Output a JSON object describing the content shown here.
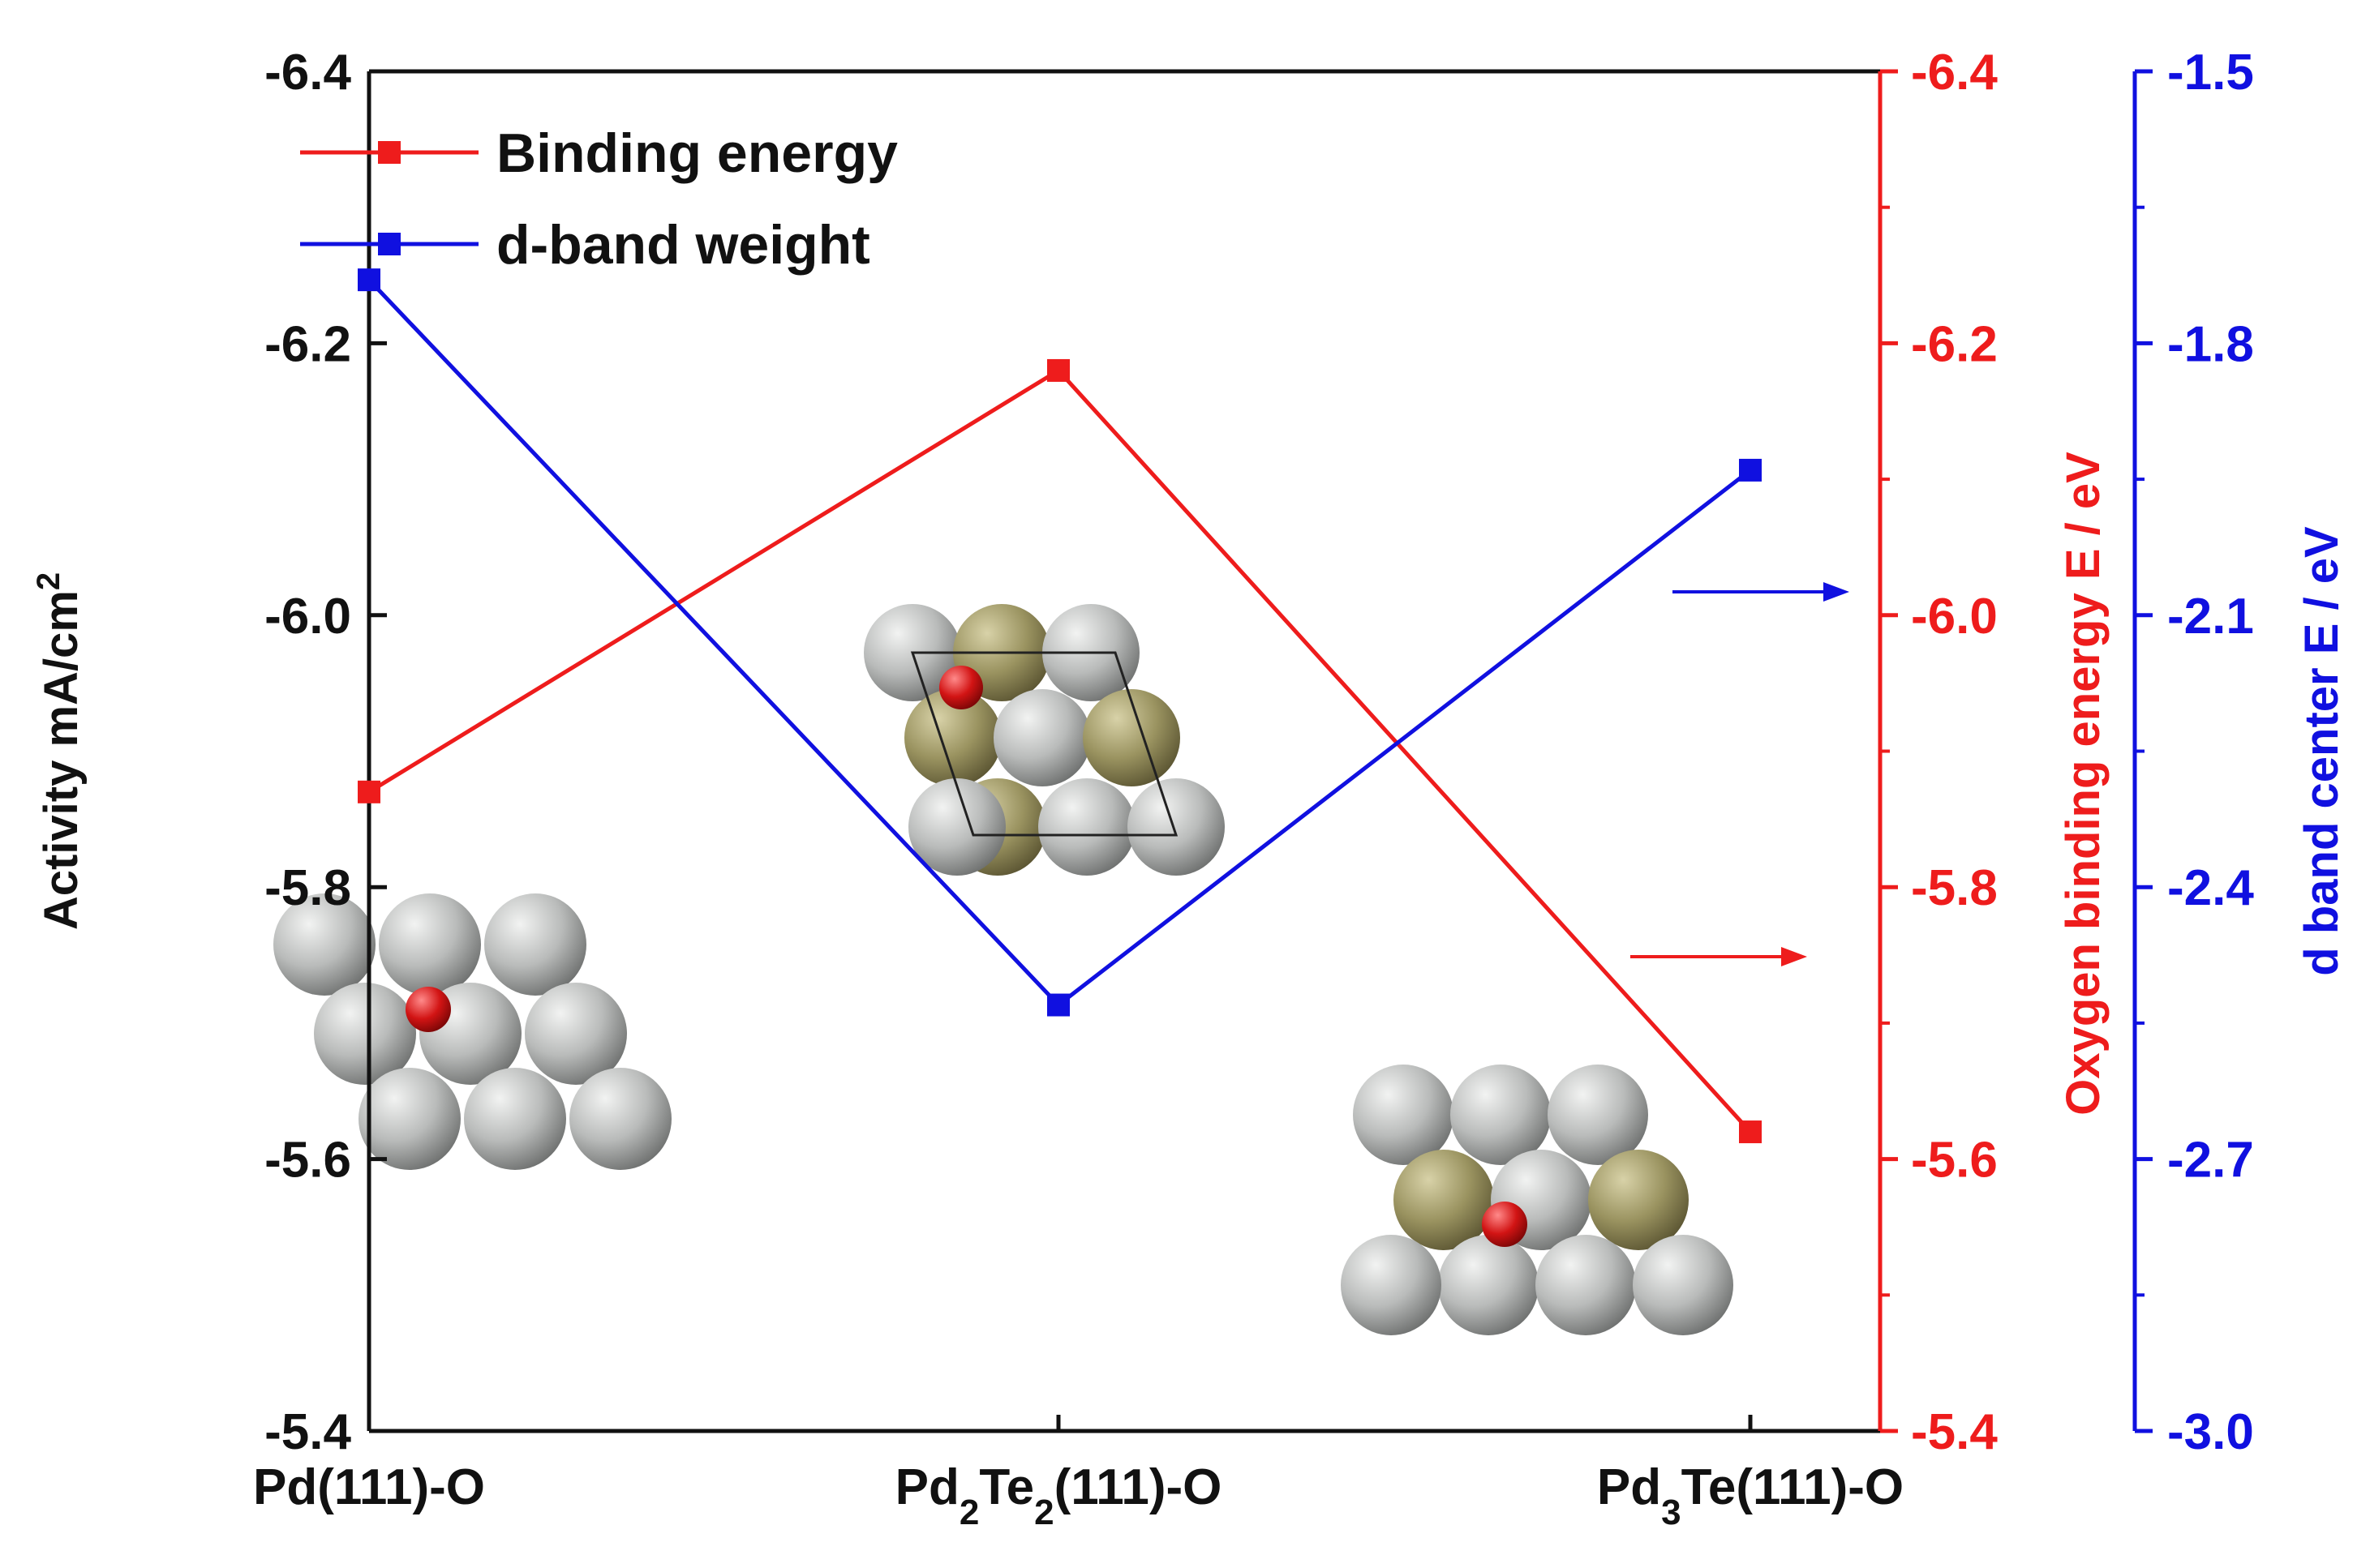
{
  "colors": {
    "red": "#ee1c1c",
    "blue": "#1010e0",
    "black": "#111111",
    "atom_pd": "#b9bbba",
    "atom_te": "#9a9360",
    "atom_o": "#d21414"
  },
  "chart_data": {
    "type": "line",
    "categories": [
      {
        "label": "Pd(111)-O",
        "parts": [
          {
            "t": "Pd(111)-O"
          }
        ]
      },
      {
        "label": "Pd2Te2(111)-O",
        "parts": [
          {
            "t": "Pd"
          },
          {
            "t": "2",
            "sub": true
          },
          {
            "t": "Te"
          },
          {
            "t": "2",
            "sub": true
          },
          {
            "t": "(111)-O"
          }
        ]
      },
      {
        "label": "Pd3Te(111)-O",
        "parts": [
          {
            "t": "Pd"
          },
          {
            "t": "3",
            "sub": true
          },
          {
            "t": "Te(111)-O"
          }
        ]
      }
    ],
    "legend": {
      "placement": "top-left",
      "entries": [
        {
          "name": "Binding energy",
          "color": "#ee1c1c"
        },
        {
          "name": "d-band weight",
          "color": "#1010e0"
        }
      ]
    },
    "axes": {
      "left": {
        "title": "Activity mA/cm",
        "title_sup": "2",
        "range": [
          -5.4,
          -6.4
        ],
        "ticks": [
          "-6.4",
          "-6.2",
          "-6.0",
          "-5.8",
          "-5.6",
          "-5.4"
        ],
        "color": "#111111"
      },
      "right_red": {
        "title": "Oxygen binding energy E / eV",
        "range": [
          -5.4,
          -6.4
        ],
        "ticks": [
          "-6.4",
          "-6.2",
          "-6.0",
          "-5.8",
          "-5.6",
          "-5.4"
        ],
        "color": "#ee1c1c"
      },
      "right_blue": {
        "title": "d band center E / eV",
        "range": [
          -3.0,
          -1.5
        ],
        "ticks": [
          "-1.5",
          "-1.8",
          "-2.1",
          "-2.4",
          "-2.7",
          "-3.0"
        ],
        "color": "#1010e0"
      }
    },
    "series": [
      {
        "name": "Binding energy",
        "axis": "right_red",
        "color": "#ee1c1c",
        "values": [
          -5.87,
          -6.18,
          -5.62
        ]
      },
      {
        "name": "d-band weight",
        "axis": "right_blue",
        "color": "#1010e0",
        "values": [
          -1.73,
          -2.53,
          -1.94
        ]
      }
    ],
    "annotations": [
      {
        "type": "arrow",
        "color": "#1010e0",
        "points_to": "right_blue"
      },
      {
        "type": "arrow",
        "color": "#ee1c1c",
        "points_to": "right_red"
      }
    ],
    "insets": [
      {
        "name": "Pd(111)-O structure",
        "atoms": "Pd + O"
      },
      {
        "name": "Pd2Te2(111)-O structure",
        "atoms": "Pd + Te + O"
      },
      {
        "name": "Pd3Te(111)-O structure",
        "atoms": "Pd + Te + O"
      }
    ],
    "grid": false
  }
}
